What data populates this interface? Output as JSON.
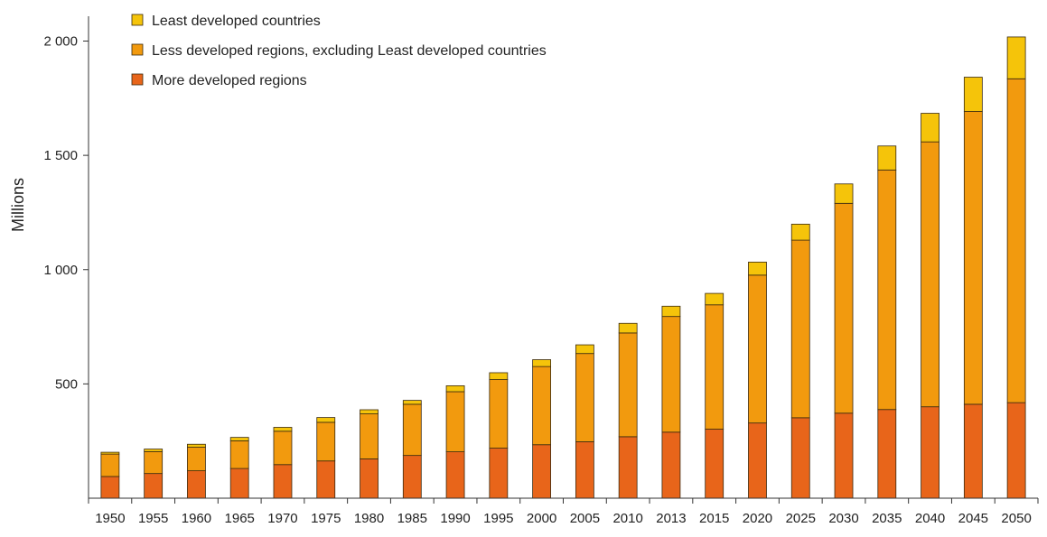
{
  "chart_data": {
    "type": "bar",
    "stacked": true,
    "title": "",
    "xlabel": "",
    "ylabel": "Millions",
    "ylim": [
      0,
      2000
    ],
    "yticks": [
      500,
      1000,
      1500,
      2000
    ],
    "ytick_labels": [
      "500",
      "1 000",
      "1 500",
      "2 000"
    ],
    "grid": false,
    "legend_position": "top-left",
    "categories": [
      "1950",
      "1955",
      "1960",
      "1965",
      "1970",
      "1975",
      "1980",
      "1985",
      "1990",
      "1995",
      "2000",
      "2005",
      "2010",
      "2013",
      "2015",
      "2020",
      "2025",
      "2030",
      "2035",
      "2040",
      "2045",
      "2050"
    ],
    "series": [
      {
        "name": "More developed regions",
        "color": "#e8651a",
        "values": [
          95,
          108,
          120,
          130,
          147,
          163,
          172,
          187,
          203,
          219,
          234,
          247,
          269,
          289,
          302,
          329,
          352,
          372,
          388,
          400,
          411,
          418
        ]
      },
      {
        "name": "Less developed regions, excluding Least developed countries",
        "color": "#f29a0e",
        "values": [
          98,
          96,
          103,
          121,
          146,
          169,
          197,
          224,
          263,
          300,
          342,
          386,
          454,
          506,
          544,
          647,
          777,
          918,
          1048,
          1159,
          1281,
          1417
        ]
      },
      {
        "name": "Least developed countries",
        "color": "#f5c40a",
        "values": [
          8,
          11,
          13,
          15,
          17,
          21,
          18,
          17,
          26,
          30,
          30,
          38,
          42,
          45,
          50,
          57,
          70,
          85,
          105,
          125,
          150,
          183
        ]
      }
    ]
  }
}
